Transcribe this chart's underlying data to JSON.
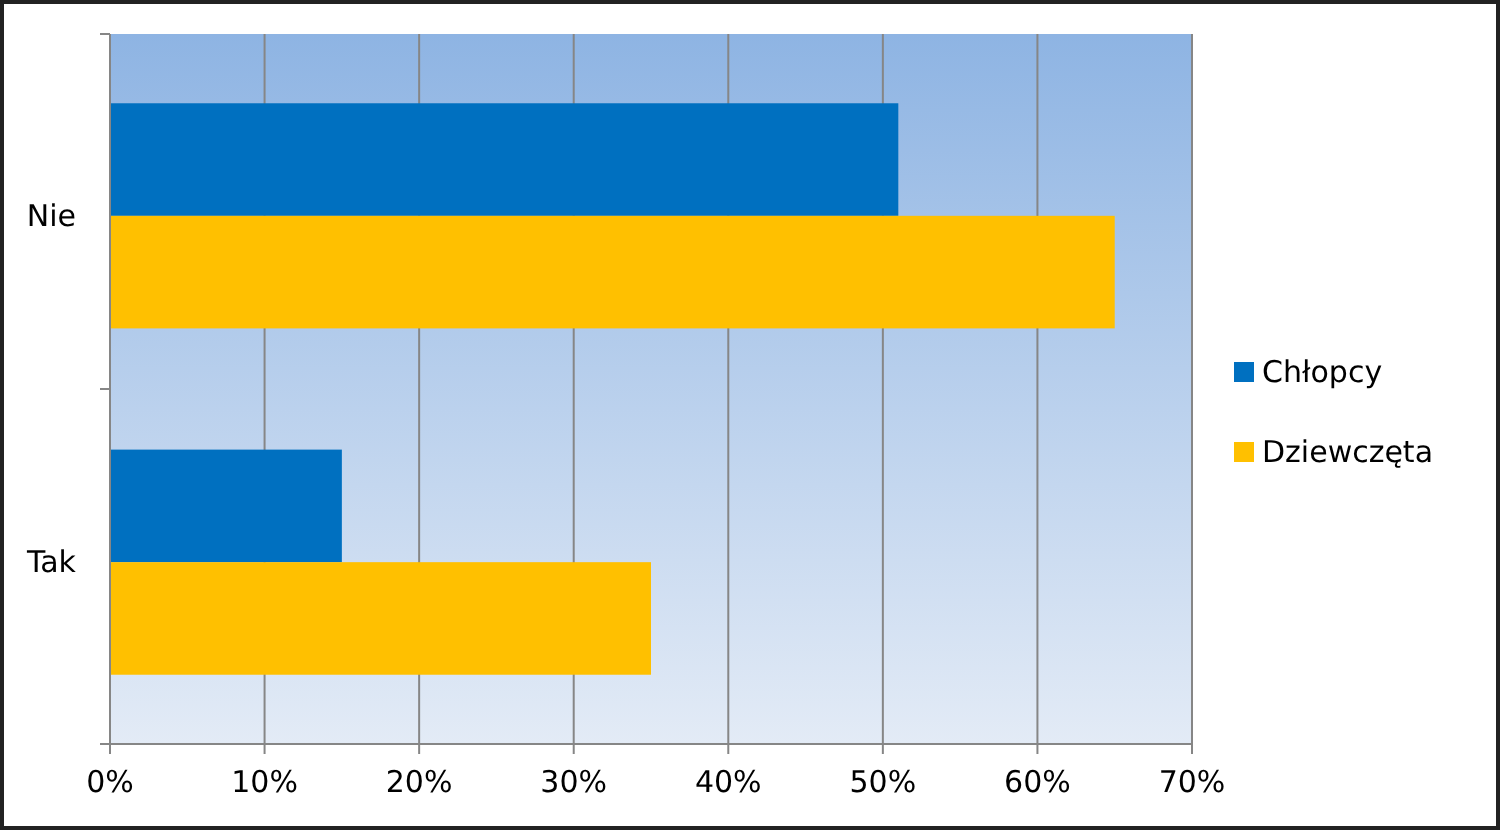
{
  "chart_data": {
    "type": "bar",
    "orientation": "horizontal",
    "categories": [
      "Nie",
      "Tak"
    ],
    "series": [
      {
        "name": "Chłopcy",
        "color": "#0070c0",
        "values": [
          51,
          15
        ]
      },
      {
        "name": "Dziewczęta",
        "color": "#ffc000",
        "values": [
          65,
          35
        ]
      }
    ],
    "xlim": [
      0,
      70
    ],
    "xticks": [
      {
        "value": 0,
        "label": "0%"
      },
      {
        "value": 10,
        "label": "10%"
      },
      {
        "value": 20,
        "label": "20%"
      },
      {
        "value": 30,
        "label": "30%"
      },
      {
        "value": 40,
        "label": "40%"
      },
      {
        "value": 50,
        "label": "50%"
      },
      {
        "value": 60,
        "label": "60%"
      },
      {
        "value": 70,
        "label": "70%"
      }
    ],
    "grid": "x",
    "legend": "right"
  }
}
